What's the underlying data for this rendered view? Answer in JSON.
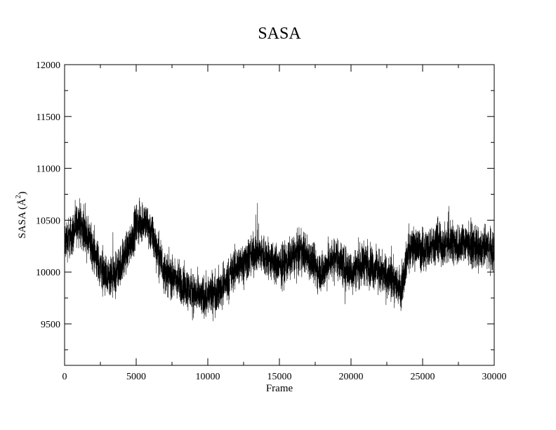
{
  "chart_data": {
    "type": "line",
    "title": "SASA",
    "xlabel": "Frame",
    "ylabel_main": "SASA (Å",
    "ylabel_sup": "2",
    "ylabel_end": ")",
    "xlim": [
      0,
      30000
    ],
    "ylim": [
      9100,
      12000
    ],
    "x_ticks": [
      0,
      5000,
      10000,
      15000,
      20000,
      25000,
      30000
    ],
    "x_tick_labels": [
      "0",
      "5000",
      "10000",
      "15000",
      "20000",
      "25000",
      "30000"
    ],
    "y_ticks": [
      9500,
      10000,
      10500,
      11000,
      11500,
      12000
    ],
    "y_tick_labels": [
      "9500",
      "10000",
      "10500",
      "11000",
      "11500",
      "12000"
    ],
    "grid": false,
    "legend": "none",
    "line_color": "#000000",
    "series": [
      {
        "x": [
          0,
          500,
          1000,
          1500,
          2000,
          2500,
          3000,
          3500,
          4000,
          4500,
          5000,
          5500,
          6000,
          6500,
          7000,
          7500,
          8000,
          8500,
          9000,
          9500,
          10000,
          10500,
          11000,
          11500,
          12000,
          12500,
          13000,
          13500,
          14000,
          14500,
          15000,
          15500,
          16000,
          16500,
          17000,
          17500,
          18000,
          18500,
          19000,
          19500,
          20000,
          20500,
          21000,
          21500,
          22000,
          22500,
          23000,
          23500,
          24000,
          24500,
          25000,
          25500,
          26000,
          26500,
          27000,
          27500,
          28000,
          28500,
          29000,
          29500,
          30000
        ],
        "y": [
          10300,
          10350,
          10500,
          10350,
          10200,
          10050,
          9900,
          9950,
          10100,
          10250,
          10450,
          10500,
          10400,
          10200,
          10000,
          9950,
          9900,
          9850,
          9800,
          9750,
          9780,
          9800,
          9850,
          9950,
          10050,
          10100,
          10150,
          10200,
          10150,
          10100,
          10050,
          10100,
          10150,
          10200,
          10150,
          10050,
          10000,
          10100,
          10150,
          10050,
          10000,
          10050,
          10100,
          10050,
          10000,
          9950,
          9900,
          9850,
          10200,
          10250,
          10200,
          10250,
          10300,
          10250,
          10300,
          10250,
          10300,
          10250,
          10200,
          10250,
          10200
        ],
        "noise_amplitude": 220
      }
    ]
  }
}
